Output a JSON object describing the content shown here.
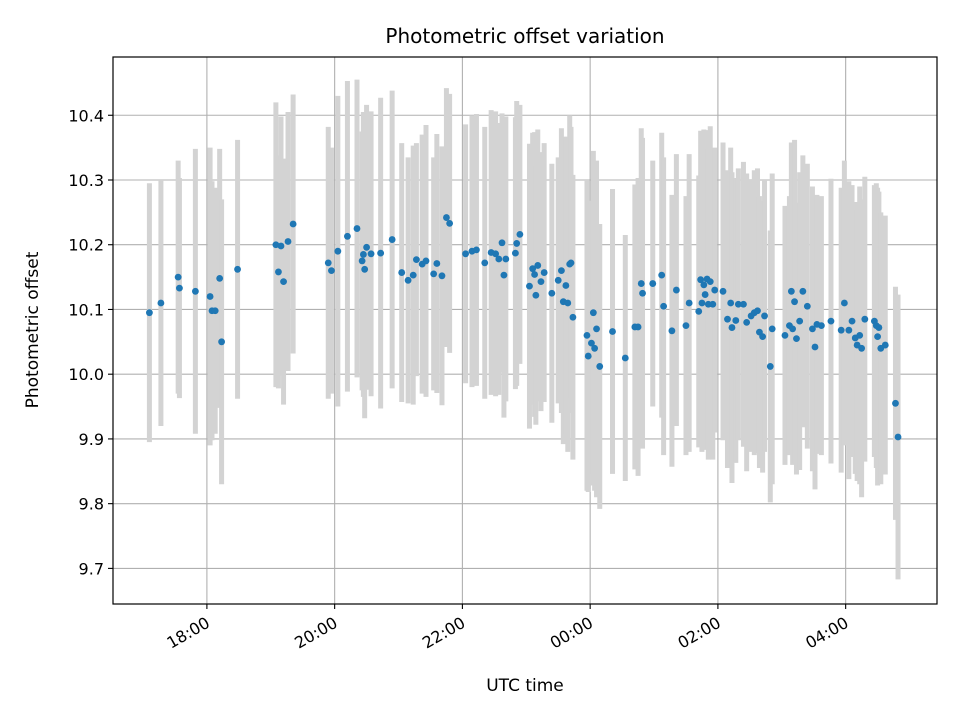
{
  "chart_data": {
    "type": "scatter",
    "title": "Photometric offset variation",
    "xlabel": "UTC time",
    "ylabel": "Photometric offset",
    "grid": true,
    "colors": {
      "point": "#1f77b4",
      "errorbar": "#d3d3d3",
      "grid": "#b0b0b0"
    },
    "x_unit": "hours since 18:00 UTC",
    "xlim": [
      -1.47,
      11.43
    ],
    "ylim": [
      9.645,
      10.49
    ],
    "x_ticks": [
      {
        "value": 0,
        "label": "18:00"
      },
      {
        "value": 2,
        "label": "20:00"
      },
      {
        "value": 4,
        "label": "22:00"
      },
      {
        "value": 6,
        "label": "00:00"
      },
      {
        "value": 8,
        "label": "02:00"
      },
      {
        "value": 10,
        "label": "04:00"
      }
    ],
    "y_ticks": [
      {
        "value": 9.7,
        "label": "9.7"
      },
      {
        "value": 9.8,
        "label": "9.8"
      },
      {
        "value": 9.9,
        "label": "9.9"
      },
      {
        "value": 10.0,
        "label": "10.0"
      },
      {
        "value": 10.1,
        "label": "10.1"
      },
      {
        "value": 10.2,
        "label": "10.2"
      },
      {
        "value": 10.3,
        "label": "10.3"
      },
      {
        "value": 10.4,
        "label": "10.4"
      }
    ],
    "series": [
      {
        "name": "Photometric offset",
        "points": [
          [
            -0.9,
            10.095,
            0.2
          ],
          [
            -0.72,
            10.11,
            0.19
          ],
          [
            -0.45,
            10.15,
            0.18
          ],
          [
            -0.43,
            10.133,
            0.17
          ],
          [
            -0.18,
            10.128,
            0.22
          ],
          [
            0.05,
            10.12,
            0.23
          ],
          [
            0.08,
            10.098,
            0.2
          ],
          [
            0.13,
            10.098,
            0.19
          ],
          [
            0.2,
            10.148,
            0.2
          ],
          [
            0.23,
            10.05,
            0.22
          ],
          [
            0.48,
            10.162,
            0.2
          ],
          [
            1.08,
            10.2,
            0.22
          ],
          [
            1.12,
            10.158,
            0.18
          ],
          [
            1.16,
            10.198,
            0.2
          ],
          [
            1.2,
            10.143,
            0.19
          ],
          [
            1.27,
            10.205,
            0.2
          ],
          [
            1.35,
            10.232,
            0.2
          ],
          [
            1.9,
            10.172,
            0.21
          ],
          [
            1.95,
            10.16,
            0.19
          ],
          [
            2.05,
            10.19,
            0.24
          ],
          [
            2.2,
            10.213,
            0.24
          ],
          [
            2.35,
            10.225,
            0.23
          ],
          [
            2.43,
            10.175,
            0.2
          ],
          [
            2.45,
            10.185,
            0.22
          ],
          [
            2.47,
            10.162,
            0.23
          ],
          [
            2.5,
            10.196,
            0.22
          ],
          [
            2.57,
            10.186,
            0.22
          ],
          [
            2.72,
            10.187,
            0.24
          ],
          [
            2.9,
            10.208,
            0.23
          ],
          [
            3.05,
            10.157,
            0.2
          ],
          [
            3.15,
            10.145,
            0.19
          ],
          [
            3.23,
            10.153,
            0.2
          ],
          [
            3.28,
            10.177,
            0.18
          ],
          [
            3.37,
            10.17,
            0.2
          ],
          [
            3.43,
            10.175,
            0.21
          ],
          [
            3.55,
            10.155,
            0.18
          ],
          [
            3.6,
            10.171,
            0.2
          ],
          [
            3.68,
            10.152,
            0.2
          ],
          [
            3.75,
            10.242,
            0.2
          ],
          [
            3.8,
            10.233,
            0.2
          ],
          [
            4.05,
            10.186,
            0.2
          ],
          [
            4.15,
            10.19,
            0.21
          ],
          [
            4.22,
            10.192,
            0.21
          ],
          [
            4.35,
            10.172,
            0.21
          ],
          [
            4.45,
            10.188,
            0.22
          ],
          [
            4.52,
            10.186,
            0.22
          ],
          [
            4.57,
            10.178,
            0.21
          ],
          [
            4.62,
            10.203,
            0.2
          ],
          [
            4.65,
            10.153,
            0.22
          ],
          [
            4.68,
            10.178,
            0.22
          ],
          [
            4.83,
            10.187,
            0.21
          ],
          [
            4.85,
            10.202,
            0.22
          ],
          [
            4.9,
            10.216,
            0.2
          ],
          [
            5.05,
            10.136,
            0.22
          ],
          [
            5.1,
            10.163,
            0.21
          ],
          [
            5.13,
            10.154,
            0.22
          ],
          [
            5.15,
            10.122,
            0.2
          ],
          [
            5.18,
            10.168,
            0.21
          ],
          [
            5.23,
            10.143,
            0.2
          ],
          [
            5.28,
            10.157,
            0.2
          ],
          [
            5.4,
            10.125,
            0.2
          ],
          [
            5.5,
            10.145,
            0.19
          ],
          [
            5.55,
            10.16,
            0.22
          ],
          [
            5.58,
            10.112,
            0.22
          ],
          [
            5.62,
            10.137,
            0.23
          ],
          [
            5.65,
            10.11,
            0.23
          ],
          [
            5.68,
            10.17,
            0.23
          ],
          [
            5.7,
            10.172,
            0.21
          ],
          [
            5.73,
            10.088,
            0.22
          ],
          [
            5.95,
            10.06,
            0.24
          ],
          [
            5.97,
            10.028,
            0.21
          ],
          [
            6.02,
            10.048,
            0.22
          ],
          [
            6.05,
            10.095,
            0.25
          ],
          [
            6.07,
            10.04,
            0.22
          ],
          [
            6.1,
            10.07,
            0.26
          ],
          [
            6.15,
            10.012,
            0.22
          ],
          [
            6.35,
            10.066,
            0.22
          ],
          [
            6.55,
            10.025,
            0.19
          ],
          [
            6.7,
            10.073,
            0.22
          ],
          [
            6.75,
            10.073,
            0.23
          ],
          [
            6.8,
            10.14,
            0.24
          ],
          [
            6.82,
            10.125,
            0.24
          ],
          [
            6.98,
            10.14,
            0.19
          ],
          [
            7.12,
            10.153,
            0.22
          ],
          [
            7.15,
            10.105,
            0.23
          ],
          [
            7.28,
            10.067,
            0.21
          ],
          [
            7.35,
            10.13,
            0.21
          ],
          [
            7.5,
            10.075,
            0.2
          ],
          [
            7.55,
            10.11,
            0.23
          ],
          [
            7.7,
            10.097,
            0.21
          ],
          [
            7.73,
            10.146,
            0.23
          ],
          [
            7.75,
            10.11,
            0.23
          ],
          [
            7.78,
            10.138,
            0.24
          ],
          [
            7.8,
            10.123,
            0.24
          ],
          [
            7.83,
            10.147,
            0.23
          ],
          [
            7.85,
            10.108,
            0.24
          ],
          [
            7.88,
            10.143,
            0.24
          ],
          [
            7.92,
            10.108,
            0.24
          ],
          [
            7.95,
            10.13,
            0.22
          ],
          [
            8.08,
            10.128,
            0.23
          ],
          [
            8.15,
            10.085,
            0.23
          ],
          [
            8.2,
            10.11,
            0.24
          ],
          [
            8.22,
            10.072,
            0.24
          ],
          [
            8.28,
            10.083,
            0.22
          ],
          [
            8.32,
            10.108,
            0.21
          ],
          [
            8.4,
            10.108,
            0.22
          ],
          [
            8.45,
            10.08,
            0.23
          ],
          [
            8.52,
            10.09,
            0.21
          ],
          [
            8.57,
            10.095,
            0.22
          ],
          [
            8.62,
            10.098,
            0.22
          ],
          [
            8.65,
            10.065,
            0.21
          ],
          [
            8.7,
            10.058,
            0.21
          ],
          [
            8.73,
            10.09,
            0.21
          ],
          [
            8.82,
            10.012,
            0.21
          ],
          [
            8.85,
            10.07,
            0.24
          ],
          [
            9.05,
            10.06,
            0.2
          ],
          [
            9.12,
            10.075,
            0.2
          ],
          [
            9.15,
            10.128,
            0.23
          ],
          [
            9.17,
            10.07,
            0.21
          ],
          [
            9.2,
            10.112,
            0.25
          ],
          [
            9.23,
            10.055,
            0.21
          ],
          [
            9.28,
            10.082,
            0.23
          ],
          [
            9.33,
            10.128,
            0.21
          ],
          [
            9.4,
            10.105,
            0.22
          ],
          [
            9.48,
            10.07,
            0.22
          ],
          [
            9.52,
            10.042,
            0.22
          ],
          [
            9.55,
            10.077,
            0.2
          ],
          [
            9.62,
            10.075,
            0.2
          ],
          [
            9.77,
            10.082,
            0.22
          ],
          [
            9.93,
            10.068,
            0.22
          ],
          [
            9.98,
            10.11,
            0.22
          ],
          [
            10.05,
            10.068,
            0.23
          ],
          [
            10.1,
            10.082,
            0.21
          ],
          [
            10.15,
            10.056,
            0.21
          ],
          [
            10.18,
            10.045,
            0.21
          ],
          [
            10.22,
            10.06,
            0.23
          ],
          [
            10.25,
            10.04,
            0.23
          ],
          [
            10.3,
            10.085,
            0.22
          ],
          [
            10.45,
            10.082,
            0.21
          ],
          [
            10.48,
            10.075,
            0.22
          ],
          [
            10.5,
            10.058,
            0.23
          ],
          [
            10.52,
            10.072,
            0.21
          ],
          [
            10.55,
            10.04,
            0.21
          ],
          [
            10.62,
            10.045,
            0.2
          ],
          [
            10.78,
            9.955,
            0.18
          ],
          [
            10.82,
            9.903,
            0.22
          ]
        ]
      }
    ]
  }
}
